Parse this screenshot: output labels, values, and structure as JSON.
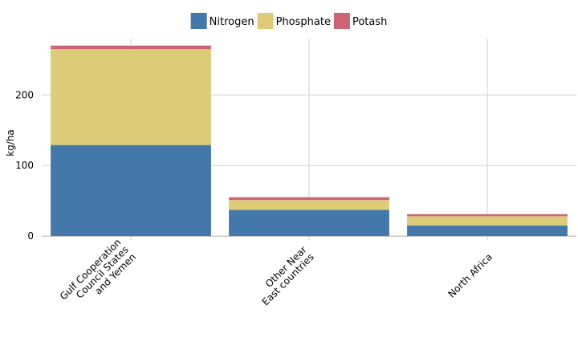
{
  "chart_data": {
    "type": "bar",
    "stacked": true,
    "title": "",
    "xlabel": "",
    "ylabel": "kg/ha",
    "ylim": [
      0,
      280
    ],
    "yticks": [
      0,
      100,
      200
    ],
    "grid": true,
    "legend_position": "top",
    "categories": [
      [
        "Gulf Cooperation",
        "Council States",
        "and Yemen"
      ],
      [
        "Other Near",
        "East countries"
      ],
      [
        "North Africa"
      ]
    ],
    "series": [
      {
        "name": "Nitrogen",
        "color": "#4477aa",
        "values": [
          129,
          37,
          15
        ]
      },
      {
        "name": "Phosphate",
        "color": "#ddcc77",
        "values": [
          136,
          14,
          13
        ]
      },
      {
        "name": "Potash",
        "color": "#cc6677",
        "values": [
          5,
          4,
          3
        ]
      }
    ]
  }
}
